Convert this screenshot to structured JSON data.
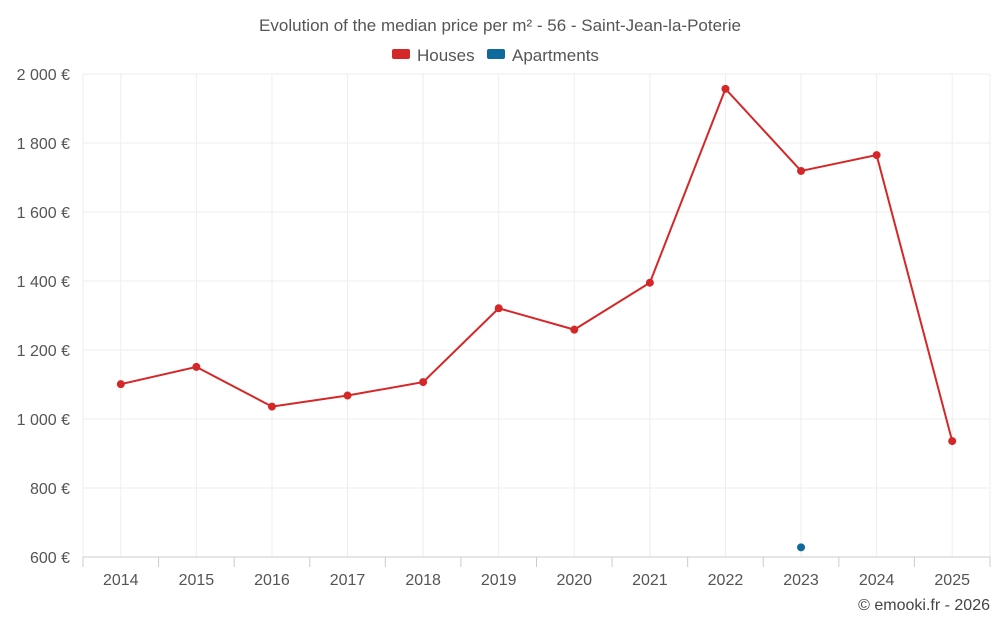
{
  "chart_data": {
    "type": "line",
    "title": "Evolution of the median price per m² - 56 - Saint-Jean-la-Poterie",
    "categories": [
      "2014",
      "2015",
      "2016",
      "2017",
      "2018",
      "2019",
      "2020",
      "2021",
      "2022",
      "2023",
      "2024",
      "2025"
    ],
    "series": [
      {
        "name": "Houses",
        "color": "#d62728",
        "values": [
          1101,
          1151,
          1036,
          1068,
          1107,
          1321,
          1259,
          1395,
          1957,
          1719,
          1765,
          936
        ]
      },
      {
        "name": "Apartments",
        "color": "#0e6a9a",
        "values": [
          null,
          null,
          null,
          null,
          null,
          null,
          null,
          null,
          null,
          628,
          null,
          null
        ]
      }
    ],
    "ylim": [
      600,
      2000
    ],
    "yticks": [
      600,
      800,
      1000,
      1200,
      1400,
      1600,
      1800,
      2000
    ],
    "ytick_labels": [
      "600 €",
      "800 €",
      "1 000 €",
      "1 200 €",
      "1 400 €",
      "1 600 €",
      "1 800 €",
      "2 000 €"
    ],
    "xlabel": "",
    "ylabel": "",
    "legend_position": "top-center",
    "grid": true
  },
  "credit": "© emooki.fr - 2026"
}
